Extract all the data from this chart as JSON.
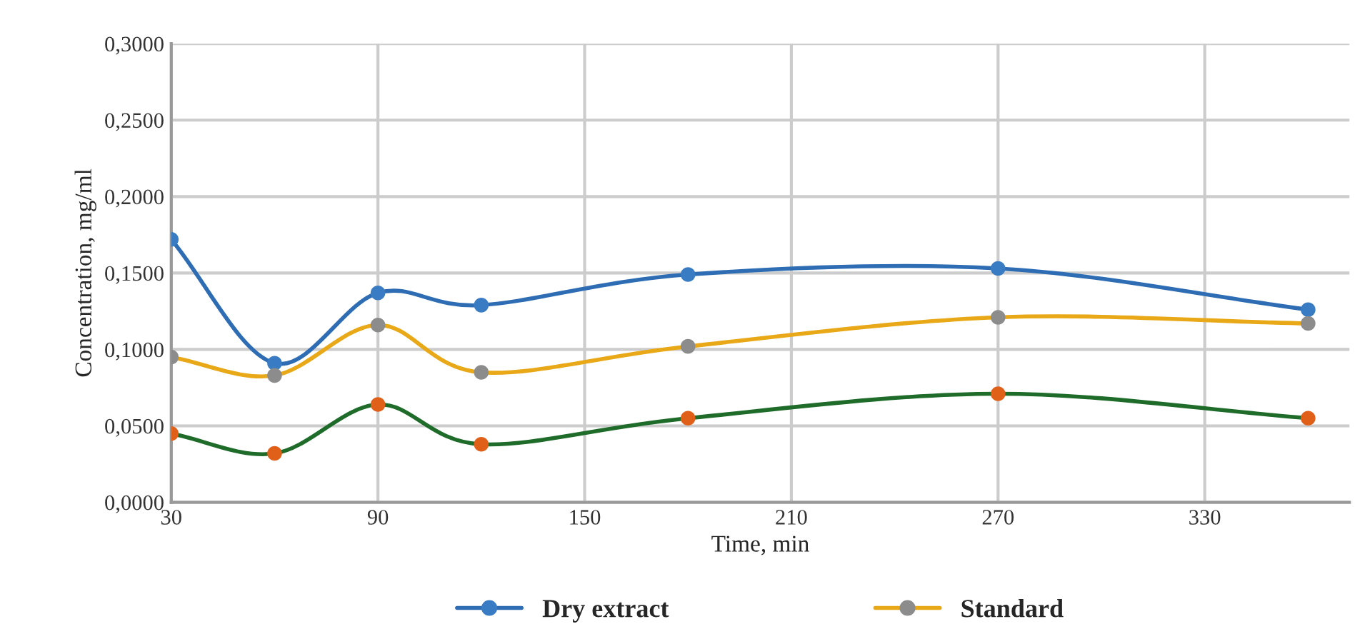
{
  "chart_data": {
    "type": "line",
    "xlabel": "Time, min",
    "ylabel": "Concentration, mg/ml",
    "x": [
      30,
      60,
      90,
      120,
      180,
      270,
      360
    ],
    "series": [
      {
        "name": "Dry extract",
        "color": "#2e6db4",
        "colors": [
          "#3a7cc4",
          "#3a7cc4",
          "#3a7cc4",
          "#3a7cc4",
          "#3a7cc4",
          "#3a7cc4",
          "#3a7cc4"
        ],
        "values": [
          0.172,
          0.091,
          0.137,
          0.129,
          0.149,
          0.153,
          0.126
        ]
      },
      {
        "color": "#1e6b2a",
        "colors": [
          "#e0601a",
          "#e0601a",
          "#e0601a",
          "#e0601a",
          "#e0601a",
          "#e0601a",
          "#e0601a"
        ],
        "values": [
          0.045,
          0.032,
          0.064,
          0.038,
          0.055,
          0.071,
          0.055
        ]
      },
      {
        "name": "Standard",
        "color": "#e8a817",
        "colors": [
          "#8c8c8c",
          "#8c8c8c",
          "#8c8c8c",
          "#8c8c8c",
          "#8c8c8c",
          "#8c8c8c",
          "#8c8c8c"
        ],
        "values": [
          0.095,
          0.083,
          0.116,
          0.085,
          0.102,
          0.121,
          0.117
        ]
      }
    ],
    "xlim": [
      30,
      372
    ],
    "xticks": [
      30,
      90,
      150,
      210,
      270,
      330
    ],
    "ylim": [
      0,
      0.3
    ],
    "yticks": [
      {
        "value": 0,
        "label": "0,0000"
      },
      {
        "value": 0.05,
        "label": "0,0500"
      },
      {
        "value": 0.1,
        "label": "0,1000"
      },
      {
        "value": 0.15,
        "label": "0,1500"
      },
      {
        "value": 0.2,
        "label": "0,2000"
      },
      {
        "value": 0.25,
        "label": "0,2500"
      },
      {
        "value": 0.3,
        "label": "0,3000"
      }
    ],
    "grid": true,
    "legend": "bottom",
    "marker": "circle",
    "line_style": "solid"
  }
}
